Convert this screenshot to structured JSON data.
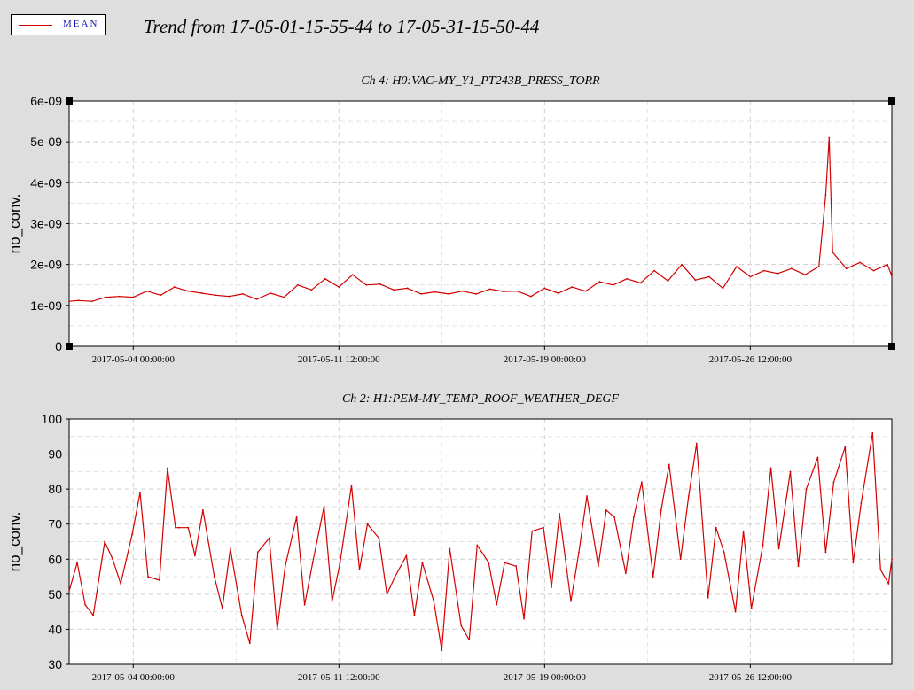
{
  "title": "Trend from 17-05-01-15-55-44 to 17-05-31-15-50-44",
  "legend": {
    "label": "MEAN",
    "color": "#d40000"
  },
  "chart_data": [
    {
      "type": "line",
      "title": "Ch 4: H0:VAC-MY_Y1_PT243B_PRESS_TORR",
      "ylabel": "no_conv.",
      "xlabel": "",
      "ylim": [
        0,
        6e-09
      ],
      "yticks": [
        0,
        1e-09,
        2e-09,
        3e-09,
        4e-09,
        5e-09,
        6e-09
      ],
      "ytick_labels": [
        "0",
        "1e-09",
        "2e-09",
        "3e-09",
        "4e-09",
        "5e-09",
        "6e-09"
      ],
      "xlim": [
        "2017-05-01 15:55:44",
        "2017-05-31 15:50:44"
      ],
      "xticks": [
        "2017-05-04 00:00:00",
        "2017-05-11 12:00:00",
        "2017-05-19 00:00:00",
        "2017-05-26 12:00:00"
      ],
      "grid": true,
      "series": [
        {
          "name": "MEAN",
          "x": [
            "2017-05-01 16:00",
            "2017-05-02 00:00",
            "2017-05-02 12:00",
            "2017-05-03 00:00",
            "2017-05-03 12:00",
            "2017-05-04 00:00",
            "2017-05-04 12:00",
            "2017-05-05 00:00",
            "2017-05-05 12:00",
            "2017-05-06 00:00",
            "2017-05-06 12:00",
            "2017-05-07 00:00",
            "2017-05-07 12:00",
            "2017-05-08 00:00",
            "2017-05-08 12:00",
            "2017-05-09 00:00",
            "2017-05-09 12:00",
            "2017-05-10 00:00",
            "2017-05-10 12:00",
            "2017-05-11 00:00",
            "2017-05-11 12:00",
            "2017-05-12 00:00",
            "2017-05-12 12:00",
            "2017-05-13 00:00",
            "2017-05-13 12:00",
            "2017-05-14 00:00",
            "2017-05-14 12:00",
            "2017-05-15 00:00",
            "2017-05-15 12:00",
            "2017-05-16 00:00",
            "2017-05-16 12:00",
            "2017-05-17 00:00",
            "2017-05-17 12:00",
            "2017-05-18 00:00",
            "2017-05-18 12:00",
            "2017-05-19 00:00",
            "2017-05-19 12:00",
            "2017-05-20 00:00",
            "2017-05-20 12:00",
            "2017-05-21 00:00",
            "2017-05-21 12:00",
            "2017-05-22 00:00",
            "2017-05-22 12:00",
            "2017-05-23 00:00",
            "2017-05-23 12:00",
            "2017-05-24 00:00",
            "2017-05-24 12:00",
            "2017-05-25 00:00",
            "2017-05-25 12:00",
            "2017-05-26 00:00",
            "2017-05-26 12:00",
            "2017-05-27 00:00",
            "2017-05-27 12:00",
            "2017-05-28 00:00",
            "2017-05-28 12:00",
            "2017-05-29 00:00",
            "2017-05-29 06:00",
            "2017-05-29 09:00",
            "2017-05-29 12:00",
            "2017-05-30 00:00",
            "2017-05-30 12:00",
            "2017-05-31 00:00",
            "2017-05-31 12:00",
            "2017-05-31 15:50"
          ],
          "y": [
            1.1e-09,
            1.12e-09,
            1.1e-09,
            1.2e-09,
            1.22e-09,
            1.2e-09,
            1.35e-09,
            1.25e-09,
            1.45e-09,
            1.35e-09,
            1.3e-09,
            1.25e-09,
            1.22e-09,
            1.28e-09,
            1.15e-09,
            1.3e-09,
            1.2e-09,
            1.5e-09,
            1.38e-09,
            1.65e-09,
            1.45e-09,
            1.75e-09,
            1.5e-09,
            1.52e-09,
            1.38e-09,
            1.42e-09,
            1.28e-09,
            1.33e-09,
            1.28e-09,
            1.35e-09,
            1.28e-09,
            1.4e-09,
            1.34e-09,
            1.35e-09,
            1.22e-09,
            1.42e-09,
            1.3e-09,
            1.45e-09,
            1.35e-09,
            1.58e-09,
            1.5e-09,
            1.65e-09,
            1.55e-09,
            1.85e-09,
            1.6e-09,
            2e-09,
            1.62e-09,
            1.7e-09,
            1.42e-09,
            1.95e-09,
            1.7e-09,
            1.85e-09,
            1.78e-09,
            1.9e-09,
            1.75e-09,
            1.95e-09,
            3.7e-09,
            5.1e-09,
            2.3e-09,
            1.9e-09,
            2.05e-09,
            1.85e-09,
            2e-09,
            1.72e-09
          ]
        }
      ]
    },
    {
      "type": "line",
      "title": "Ch 2: H1:PEM-MY_TEMP_ROOF_WEATHER_DEGF",
      "ylabel": "no_conv.",
      "xlabel": "",
      "ylim": [
        30,
        100
      ],
      "yticks": [
        30,
        40,
        50,
        60,
        70,
        80,
        90,
        100
      ],
      "ytick_labels": [
        "30",
        "40",
        "50",
        "60",
        "70",
        "80",
        "90",
        "100"
      ],
      "xlim": [
        "2017-05-01 15:55:44",
        "2017-05-31 15:50:44"
      ],
      "xticks": [
        "2017-05-04 00:00:00",
        "2017-05-11 12:00:00",
        "2017-05-19 00:00:00",
        "2017-05-26 12:00:00"
      ],
      "grid": true,
      "series": [
        {
          "name": "MEAN",
          "x": [
            "2017-05-01 16:00",
            "2017-05-01 23:00",
            "2017-05-02 06:00",
            "2017-05-02 13:00",
            "2017-05-02 23:00",
            "2017-05-03 06:00",
            "2017-05-03 13:00",
            "2017-05-03 23:00",
            "2017-05-04 06:00",
            "2017-05-04 13:00",
            "2017-05-04 23:00",
            "2017-05-05 06:00",
            "2017-05-05 13:00",
            "2017-05-05 16:00",
            "2017-05-06 00:00",
            "2017-05-06 04:00",
            "2017-05-06 06:00",
            "2017-05-06 13:00",
            "2017-05-06 23:00",
            "2017-05-07 06:00",
            "2017-05-07 13:00",
            "2017-05-07 23:00",
            "2017-05-08 06:00",
            "2017-05-08 13:00",
            "2017-05-08 23:00",
            "2017-05-09 06:00",
            "2017-05-09 13:00",
            "2017-05-09 23:00",
            "2017-05-10 06:00",
            "2017-05-10 13:00",
            "2017-05-10 23:00",
            "2017-05-11 06:00",
            "2017-05-11 13:00",
            "2017-05-11 23:00",
            "2017-05-12 06:00",
            "2017-05-12 13:00",
            "2017-05-12 23:00",
            "2017-05-13 06:00",
            "2017-05-13 13:00",
            "2017-05-13 23:00",
            "2017-05-14 06:00",
            "2017-05-14 13:00",
            "2017-05-14 23:00",
            "2017-05-15 06:00",
            "2017-05-15 13:00",
            "2017-05-15 23:00",
            "2017-05-16 06:00",
            "2017-05-16 13:00",
            "2017-05-16 23:00",
            "2017-05-17 06:00",
            "2017-05-17 13:00",
            "2017-05-17 23:00",
            "2017-05-18 06:00",
            "2017-05-18 13:00",
            "2017-05-18 23:00",
            "2017-05-19 06:00",
            "2017-05-19 13:00",
            "2017-05-19 23:00",
            "2017-05-20 06:00",
            "2017-05-20 13:00",
            "2017-05-20 23:00",
            "2017-05-21 06:00",
            "2017-05-21 13:00",
            "2017-05-21 23:00",
            "2017-05-22 06:00",
            "2017-05-22 13:00",
            "2017-05-22 23:00",
            "2017-05-23 06:00",
            "2017-05-23 13:00",
            "2017-05-23 23:00",
            "2017-05-24 06:00",
            "2017-05-24 13:00",
            "2017-05-24 23:00",
            "2017-05-25 06:00",
            "2017-05-25 13:00",
            "2017-05-25 23:00",
            "2017-05-26 06:00",
            "2017-05-26 13:00",
            "2017-05-26 23:00",
            "2017-05-27 06:00",
            "2017-05-27 13:00",
            "2017-05-27 23:00",
            "2017-05-28 06:00",
            "2017-05-28 13:00",
            "2017-05-28 23:00",
            "2017-05-29 06:00",
            "2017-05-29 13:00",
            "2017-05-29 23:00",
            "2017-05-30 06:00",
            "2017-05-30 13:00",
            "2017-05-30 23:00",
            "2017-05-31 06:00",
            "2017-05-31 13:00",
            "2017-05-31 15:50"
          ],
          "y": [
            51,
            59,
            47,
            44,
            65,
            60,
            53,
            67,
            79,
            55,
            54,
            86,
            69,
            69,
            69,
            64,
            61,
            74,
            55,
            46,
            63,
            44,
            36,
            62,
            66,
            40,
            58,
            72,
            47,
            59,
            75,
            48,
            59,
            81,
            57,
            70,
            66,
            50,
            55,
            61,
            44,
            59,
            48,
            34,
            63,
            41,
            37,
            64,
            59,
            47,
            59,
            58,
            43,
            68,
            69,
            52,
            73,
            48,
            62,
            78,
            58,
            74,
            72,
            56,
            72,
            82,
            55,
            74,
            87,
            60,
            78,
            93,
            49,
            69,
            62,
            45,
            68,
            46,
            64,
            86,
            63,
            85,
            58,
            80,
            89,
            62,
            82,
            92,
            59,
            76,
            96,
            57,
            53,
            60
          ]
        }
      ]
    }
  ]
}
